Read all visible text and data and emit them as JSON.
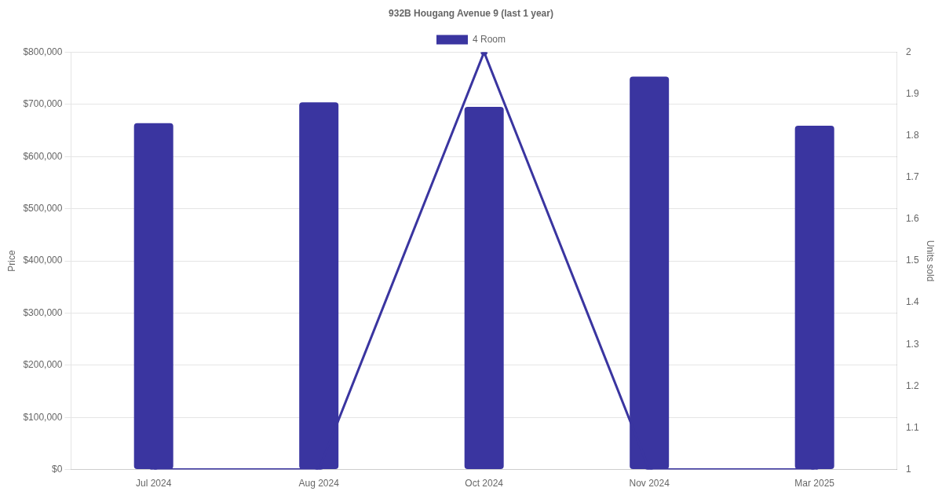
{
  "chart_data": {
    "type": "bar",
    "title": "932B Hougang Avenue 9 (last 1 year)",
    "ylabel": "Price",
    "y2label": "Units sold",
    "categories": [
      "Jul 2024",
      "Aug 2024",
      "Oct 2024",
      "Nov 2024",
      "Mar 2025"
    ],
    "series": [
      {
        "name": "4 Room",
        "color": "#3a35a0",
        "values": [
          664000,
          704000,
          695000,
          753000,
          659000
        ]
      },
      {
        "type": "line",
        "axis": "y2",
        "color": "#3a35a0",
        "values": [
          1,
          1,
          2,
          1,
          1
        ]
      }
    ],
    "ylim": [
      0,
      800000
    ],
    "yticks": [
      {
        "value": 0,
        "label": "$0"
      },
      {
        "value": 100000,
        "label": "$100,000"
      },
      {
        "value": 200000,
        "label": "$200,000"
      },
      {
        "value": 300000,
        "label": "$300,000"
      },
      {
        "value": 400000,
        "label": "$400,000"
      },
      {
        "value": 500000,
        "label": "$500,000"
      },
      {
        "value": 600000,
        "label": "$600,000"
      },
      {
        "value": 700000,
        "label": "$700,000"
      },
      {
        "value": 800000,
        "label": "$800,000"
      }
    ],
    "y2lim": [
      1,
      2
    ],
    "y2ticks": [
      1,
      1.1,
      1.2,
      1.3,
      1.4,
      1.5,
      1.6,
      1.7,
      1.8,
      1.9,
      2
    ],
    "grid": "y",
    "legend": "top",
    "marker": "circle",
    "line_style": "solid"
  }
}
